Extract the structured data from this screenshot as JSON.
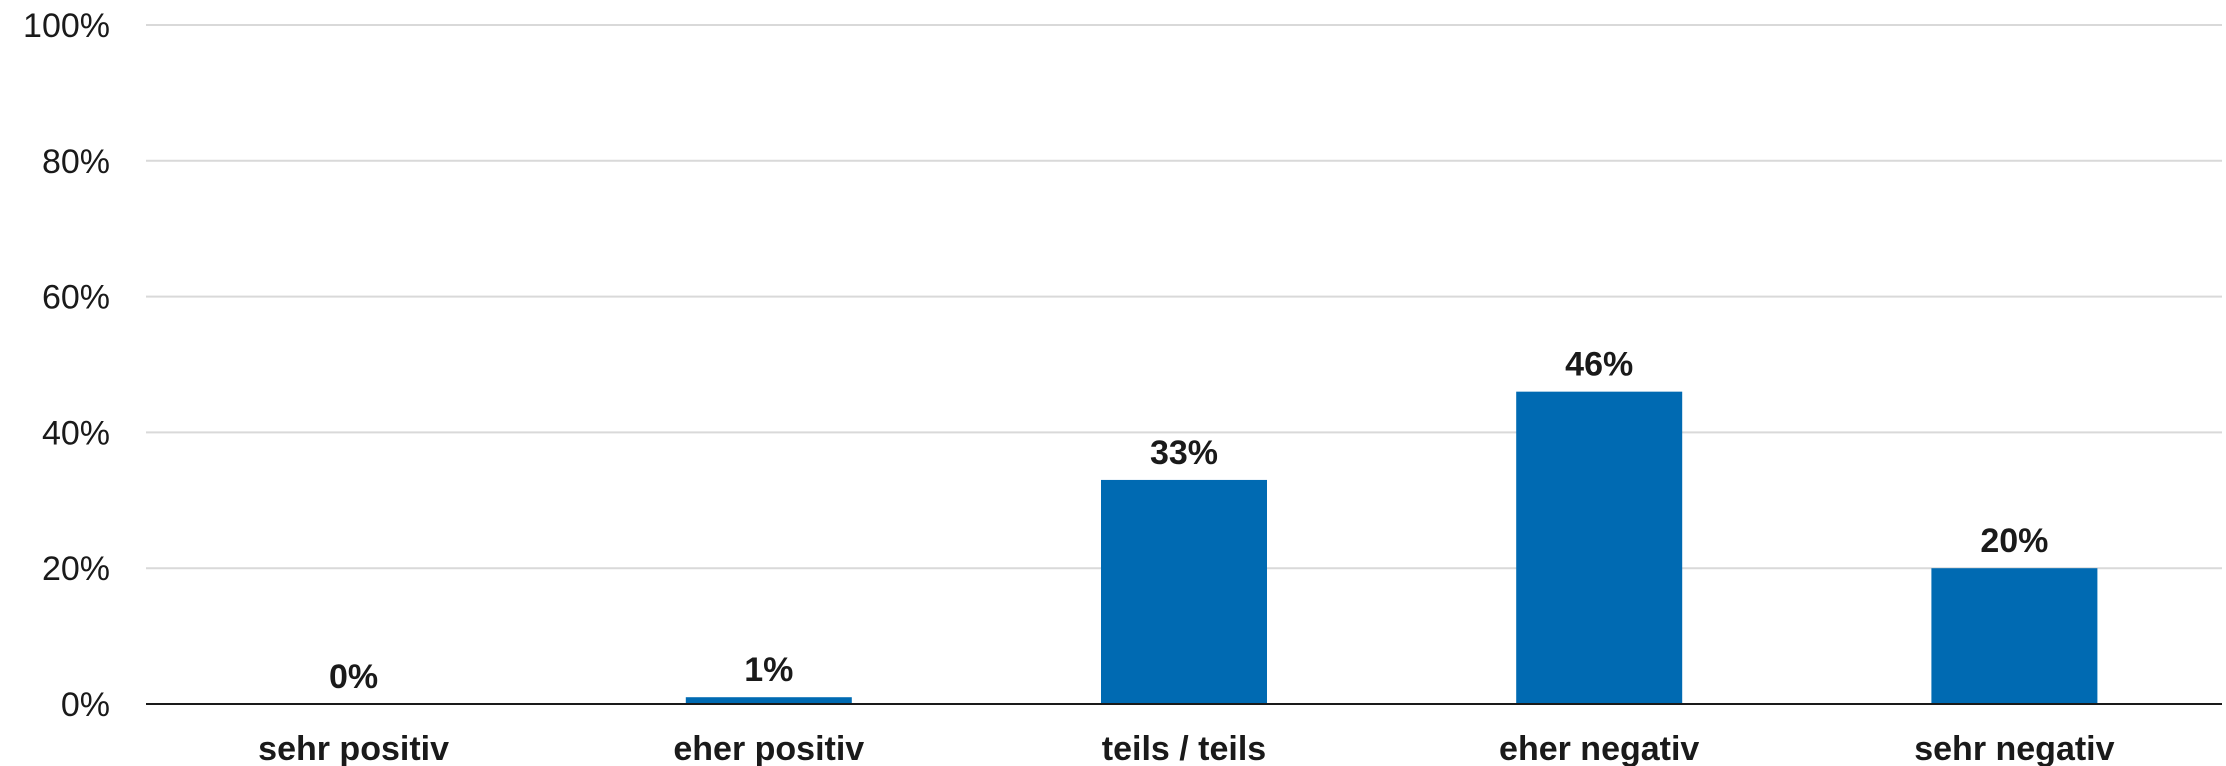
{
  "chart_data": {
    "type": "bar",
    "categories": [
      "sehr positiv",
      "eher positiv",
      "teils / teils",
      "eher negativ",
      "sehr negativ"
    ],
    "values": [
      0,
      1,
      33,
      46,
      20
    ],
    "data_labels": [
      "0%",
      "1%",
      "33%",
      "46%",
      "20%"
    ],
    "ylim": [
      0,
      100
    ],
    "yticks": [
      0,
      20,
      40,
      60,
      80,
      100
    ],
    "ytick_labels": [
      "0%",
      "20%",
      "40%",
      "60%",
      "80%",
      "100%"
    ],
    "title": "",
    "xlabel": "",
    "ylabel": "",
    "grid": true,
    "legend": "none",
    "bar_color": "#006ab2"
  }
}
